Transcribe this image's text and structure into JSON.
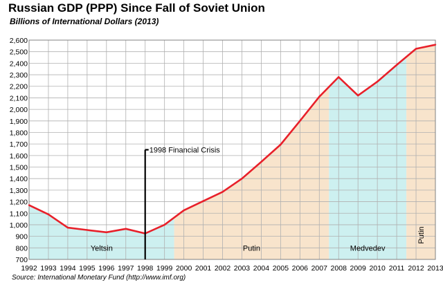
{
  "chart_data": {
    "type": "line",
    "title": "Russian  GDP (PPP) Since Fall of Soviet Union",
    "subtitle": "Billions of International Dollars (2013)",
    "source": "Source: International Monetary Fund (http://www.imf.org)",
    "x": [
      1992,
      1993,
      1994,
      1995,
      1996,
      1997,
      1998,
      1999,
      2000,
      2001,
      2002,
      2003,
      2004,
      2005,
      2006,
      2007,
      2008,
      2009,
      2010,
      2011,
      2012,
      2013
    ],
    "series": [
      {
        "values": [
          1170,
          1090,
          975,
          955,
          935,
          965,
          925,
          1000,
          1125,
          1205,
          1285,
          1400,
          1545,
          1695,
          1900,
          2110,
          2280,
          2120,
          2240,
          2385,
          2525,
          2560
        ],
        "color": "#e8202a"
      }
    ],
    "ylim": [
      700,
      2600
    ],
    "xlim": [
      1992,
      2013
    ],
    "yticks": [
      700,
      800,
      900,
      "1,000",
      "1,100",
      "1,200",
      "1,300",
      "1,400",
      "1,500",
      "1,600",
      "1,700",
      "1,800",
      "1,900",
      "2,000",
      "2,100",
      "2,200",
      "2,300",
      "2,400",
      "2,500",
      "2,600"
    ],
    "xticks": [
      "1992",
      "1993",
      "1994",
      "1995",
      "1996",
      "1997",
      "1998",
      "1999",
      "2000",
      "2001",
      "2002",
      "2003",
      "2004",
      "2005",
      "2006",
      "2007",
      "2008",
      "2009",
      "2010",
      "2011",
      "2012",
      "2013"
    ],
    "grid": true,
    "eras": [
      {
        "label": "Yeltsin",
        "start": 1992,
        "end": 1999.5,
        "color": "#cdf0f0"
      },
      {
        "label": "Putin",
        "start": 1999.5,
        "end": 2007.5,
        "color": "#f8e4cc"
      },
      {
        "label": "Medvedev",
        "start": 2007.5,
        "end": 2011.5,
        "color": "#cdf0f0"
      },
      {
        "label": "Putin",
        "start": 2011.5,
        "end": 2013,
        "color": "#f8e4cc",
        "vertical_label": true
      }
    ],
    "annotations": [
      {
        "label": "1998 Financial Crisis",
        "x": 1998,
        "y": 1650
      }
    ]
  }
}
